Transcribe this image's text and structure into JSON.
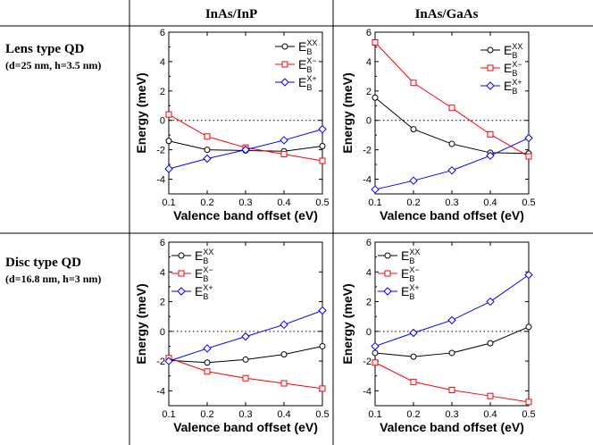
{
  "columns": [
    "InAs/InP",
    "InAs/GaAs"
  ],
  "rows": [
    {
      "title": "Lens type QD",
      "subtitle": "(d=25 nm, h=3.5 nm)"
    },
    {
      "title": "Disc type QD",
      "subtitle": "(d=16.8 nm, h=3 nm)"
    }
  ],
  "colors": {
    "xx": "#000000",
    "xm": "#ff0000",
    "xp": "#0000ff"
  },
  "chart_data": [
    {
      "type": "line",
      "id": "lens-inasinp",
      "xlabel": "Valence band offset (eV)",
      "ylabel": "Energy (meV)",
      "xlim": [
        0.1,
        0.5
      ],
      "ylim": [
        -5,
        6
      ],
      "xticks": [
        0.1,
        0.2,
        0.3,
        0.4,
        0.5
      ],
      "yticks": [
        -4,
        -2,
        0,
        2,
        4,
        6
      ],
      "x": [
        0.1,
        0.2,
        0.3,
        0.4,
        0.5
      ],
      "legend": "top-right",
      "series": [
        {
          "name": "E_B^XX",
          "key": "xx",
          "marker": "circle",
          "values": [
            -1.4,
            -2.0,
            -2.05,
            -2.1,
            -1.75
          ]
        },
        {
          "name": "E_B^X-",
          "key": "xm",
          "marker": "square",
          "values": [
            0.4,
            -1.1,
            -1.85,
            -2.3,
            -2.75
          ]
        },
        {
          "name": "E_B^X+",
          "key": "xp",
          "marker": "diamond",
          "values": [
            -3.3,
            -2.6,
            -2.0,
            -1.35,
            -0.6
          ]
        }
      ]
    },
    {
      "type": "line",
      "id": "lens-inasgaas",
      "xlabel": "Valence band offset (eV)",
      "ylabel": "Energy (meV)",
      "xlim": [
        0.1,
        0.5
      ],
      "ylim": [
        -5,
        6
      ],
      "xticks": [
        0.1,
        0.2,
        0.3,
        0.4,
        0.5
      ],
      "yticks": [
        -4,
        -2,
        0,
        2,
        4,
        6
      ],
      "x": [
        0.1,
        0.2,
        0.3,
        0.4,
        0.5
      ],
      "legend": "top-right",
      "series": [
        {
          "name": "E_B^XX",
          "key": "xx",
          "marker": "circle",
          "values": [
            1.55,
            -0.6,
            -1.6,
            -2.2,
            -2.25
          ]
        },
        {
          "name": "E_B^X-",
          "key": "xm",
          "marker": "square",
          "values": [
            5.3,
            2.55,
            0.85,
            -0.95,
            -2.45
          ]
        },
        {
          "name": "E_B^X+",
          "key": "xp",
          "marker": "diamond",
          "values": [
            -4.7,
            -4.1,
            -3.4,
            -2.4,
            -1.2
          ]
        }
      ]
    },
    {
      "type": "line",
      "id": "disc-inasinp",
      "xlabel": "Valence band offset (eV)",
      "ylabel": "Energy (meV)",
      "xlim": [
        0.1,
        0.5
      ],
      "ylim": [
        -5,
        6
      ],
      "xticks": [
        0.1,
        0.2,
        0.3,
        0.4,
        0.5
      ],
      "yticks": [
        -4,
        -2,
        0,
        2,
        4,
        6
      ],
      "x": [
        0.1,
        0.2,
        0.3,
        0.4,
        0.5
      ],
      "legend": "top-left",
      "series": [
        {
          "name": "E_B^XX",
          "key": "xx",
          "marker": "circle",
          "values": [
            -1.95,
            -2.1,
            -1.9,
            -1.55,
            -1.0
          ]
        },
        {
          "name": "E_B^X-",
          "key": "xm",
          "marker": "square",
          "values": [
            -1.8,
            -2.7,
            -3.15,
            -3.5,
            -3.85
          ]
        },
        {
          "name": "E_B^X+",
          "key": "xp",
          "marker": "diamond",
          "values": [
            -2.0,
            -1.15,
            -0.35,
            0.45,
            1.4
          ]
        }
      ]
    },
    {
      "type": "line",
      "id": "disc-inasgaas",
      "xlabel": "Valence band offset (eV)",
      "ylabel": "Energy (meV)",
      "xlim": [
        0.1,
        0.5
      ],
      "ylim": [
        -5,
        6
      ],
      "xticks": [
        0.1,
        0.2,
        0.3,
        0.4,
        0.5
      ],
      "yticks": [
        -4,
        -2,
        0,
        2,
        4,
        6
      ],
      "x": [
        0.1,
        0.2,
        0.3,
        0.4,
        0.5
      ],
      "legend": "top-left",
      "series": [
        {
          "name": "E_B^XX",
          "key": "xx",
          "marker": "circle",
          "values": [
            -1.45,
            -1.7,
            -1.45,
            -0.8,
            0.3
          ]
        },
        {
          "name": "E_B^X-",
          "key": "xm",
          "marker": "square",
          "values": [
            -2.1,
            -3.4,
            -3.95,
            -4.35,
            -4.75
          ]
        },
        {
          "name": "E_B^X+",
          "key": "xp",
          "marker": "diamond",
          "values": [
            -1.0,
            -0.1,
            0.75,
            2.0,
            3.8
          ]
        }
      ]
    }
  ]
}
